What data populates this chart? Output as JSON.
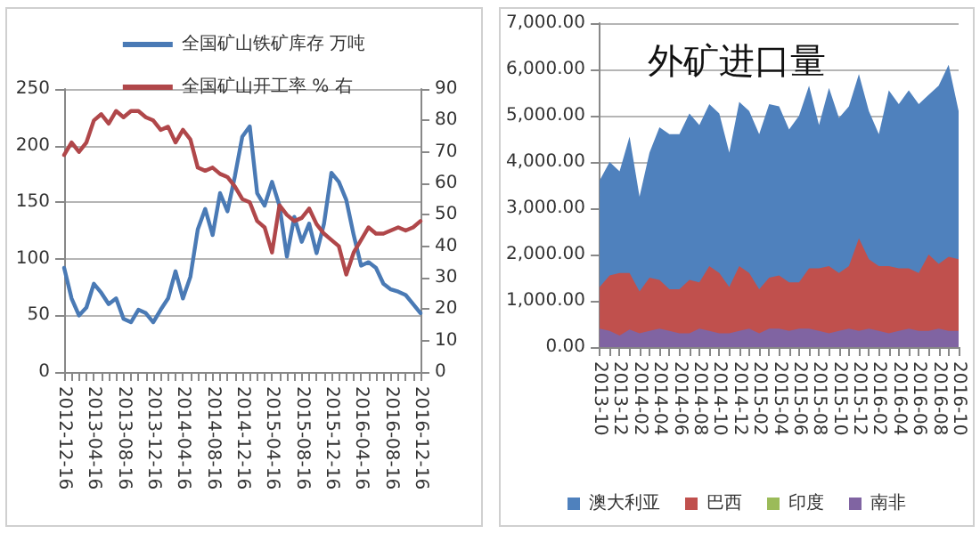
{
  "chart_data": [
    {
      "type": "line",
      "categories": [
        "2012-12-16",
        null,
        null,
        null,
        "2013-04-16",
        null,
        null,
        null,
        "2013-08-16",
        null,
        null,
        null,
        "2013-12-16",
        null,
        null,
        null,
        "2014-04-16",
        null,
        null,
        null,
        "2014-08-16",
        null,
        null,
        null,
        "2014-12-16",
        null,
        null,
        null,
        "2015-04-16",
        null,
        null,
        null,
        "2015-08-16",
        null,
        null,
        null,
        "2015-12-16",
        null,
        null,
        null,
        "2016-04-16",
        null,
        null,
        null,
        "2016-08-16",
        null,
        null,
        null,
        "2016-12-16"
      ],
      "series": [
        {
          "name": "全国矿山铁矿库存 万吨",
          "color": "#4a7ab5",
          "values": [
            92,
            65,
            50,
            57,
            78,
            70,
            60,
            65,
            47,
            44,
            55,
            52,
            44,
            55,
            65,
            89,
            65,
            84,
            126,
            144,
            121,
            158,
            142,
            173,
            208,
            217,
            158,
            147,
            168,
            147,
            102,
            137,
            115,
            131,
            105,
            131,
            176,
            168,
            152,
            121,
            94,
            97,
            92,
            78,
            73,
            71,
            68,
            60,
            52
          ]
        },
        {
          "name": "全国矿山开工率 % 右",
          "color": "#b0474a",
          "axis": "y2",
          "values": [
            69,
            73,
            70,
            73,
            80,
            82,
            79,
            83,
            81,
            83,
            83,
            81,
            80,
            77,
            78,
            73,
            77,
            74,
            65,
            64,
            65,
            63,
            62,
            59,
            55,
            54,
            48,
            46,
            38,
            53,
            50,
            48,
            49,
            52,
            47,
            44,
            42,
            40,
            31,
            38,
            42,
            46,
            44,
            44,
            45,
            46,
            45,
            46,
            48
          ]
        }
      ],
      "ylim": [
        0,
        250
      ],
      "yticks": [
        0,
        50,
        100,
        150,
        200,
        250
      ],
      "y2lim": [
        0,
        90
      ],
      "y2ticks": [
        0,
        10,
        20,
        30,
        40,
        50,
        60,
        70,
        80,
        90
      ],
      "grid": "y",
      "legend": "top",
      "marker": "none"
    },
    {
      "type": "area",
      "title": "外矿进口量",
      "categories": [
        "2013-10",
        null,
        "2013-12",
        null,
        "2014-02",
        null,
        "2014-04",
        null,
        "2014-06",
        null,
        "2014-08",
        null,
        "2014-10",
        null,
        "2014-12",
        null,
        "2015-02",
        null,
        "2015-04",
        null,
        "2015-06",
        null,
        "2015-08",
        null,
        "2015-10",
        null,
        "2015-12",
        null,
        "2016-02",
        null,
        "2016-04",
        null,
        "2016-06",
        null,
        "2016-08",
        null,
        "2016-10"
      ],
      "series": [
        {
          "name": "澳大利亚",
          "color": "#4f81bd",
          "values": [
            3600,
            4000,
            3800,
            4550,
            3250,
            4200,
            4750,
            4600,
            4600,
            5050,
            4800,
            5250,
            5050,
            4200,
            5300,
            5100,
            4600,
            5250,
            5200,
            4700,
            5000,
            5650,
            4800,
            5600,
            4950,
            5200,
            5900,
            5100,
            4600,
            5550,
            5250,
            5550,
            5250,
            5450,
            5650,
            6100,
            5100
          ]
        },
        {
          "name": "巴西",
          "color": "#c0504d",
          "values": [
            1300,
            1550,
            1600,
            1600,
            1200,
            1500,
            1450,
            1250,
            1250,
            1450,
            1400,
            1750,
            1600,
            1300,
            1750,
            1600,
            1250,
            1500,
            1550,
            1400,
            1400,
            1700,
            1700,
            1750,
            1600,
            1750,
            2350,
            1900,
            1750,
            1750,
            1700,
            1700,
            1600,
            2000,
            1800,
            1950,
            1900
          ]
        },
        {
          "name": "印度",
          "color": "#9bbb59",
          "values": [
            null,
            null,
            null,
            null,
            null,
            null,
            null,
            null,
            null,
            null,
            null,
            null,
            null,
            null,
            null,
            null,
            null,
            null,
            null,
            null,
            null,
            null,
            null,
            null,
            null,
            null,
            null,
            null,
            null,
            null,
            null,
            null,
            null,
            null,
            null,
            null,
            null
          ]
        },
        {
          "name": "南非",
          "color": "#8064a2",
          "values": [
            400,
            350,
            250,
            380,
            300,
            350,
            400,
            350,
            300,
            300,
            400,
            350,
            300,
            300,
            350,
            400,
            300,
            400,
            400,
            350,
            400,
            400,
            350,
            300,
            350,
            400,
            350,
            400,
            350,
            300,
            350,
            400,
            350,
            350,
            400,
            350,
            350
          ]
        }
      ],
      "ylim": [
        0,
        7000
      ],
      "yticks": [
        {
          "value": 0,
          "label": "0.00"
        },
        {
          "value": 1000,
          "label": "1,000.00"
        },
        {
          "value": 2000,
          "label": "2,000.00"
        },
        {
          "value": 3000,
          "label": "3,000.00"
        },
        {
          "value": 4000,
          "label": "4,000.00"
        },
        {
          "value": 5000,
          "label": "5,000.00"
        },
        {
          "value": 6000,
          "label": "6,000.00"
        },
        {
          "value": 7000,
          "label": "7,000.00"
        }
      ],
      "grid": "y",
      "legend": "bottom"
    }
  ]
}
